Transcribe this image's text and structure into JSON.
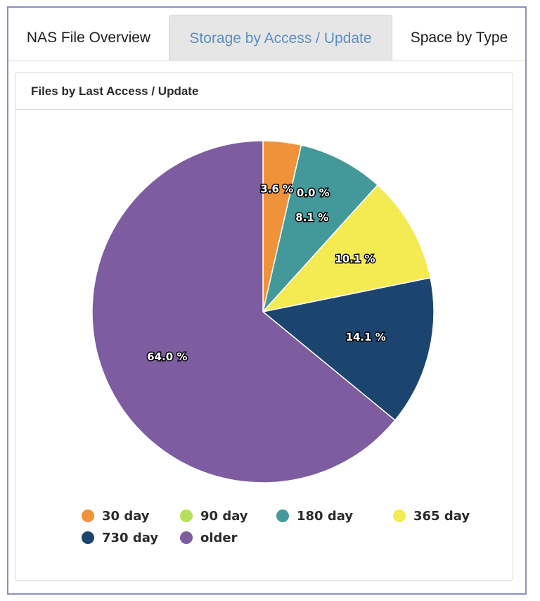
{
  "tabs": [
    {
      "label": "NAS File Overview"
    },
    {
      "label": "Storage by Access / Update"
    },
    {
      "label": "Space by Type"
    }
  ],
  "panel": {
    "title": "Files by Last Access / Update"
  },
  "chart_data": {
    "type": "pie",
    "title": "Files by Last Access / Update",
    "legend_position": "bottom",
    "slices": [
      {
        "name": "30 day",
        "value": 3.6,
        "label": "3.6 %",
        "color": "#f0923a"
      },
      {
        "name": "90 day",
        "value": 0.0,
        "label": "0.0 %",
        "color": "#b6e05a"
      },
      {
        "name": "180 day",
        "value": 8.1,
        "label": "8.1 %",
        "color": "#43989a"
      },
      {
        "name": "365 day",
        "value": 10.1,
        "label": "10.1 %",
        "color": "#f4ea52"
      },
      {
        "name": "730 day",
        "value": 14.1,
        "label": "14.1 %",
        "color": "#1b456f"
      },
      {
        "name": "older",
        "value": 64.0,
        "label": "64.0 %",
        "color": "#7d5c9f"
      }
    ]
  }
}
